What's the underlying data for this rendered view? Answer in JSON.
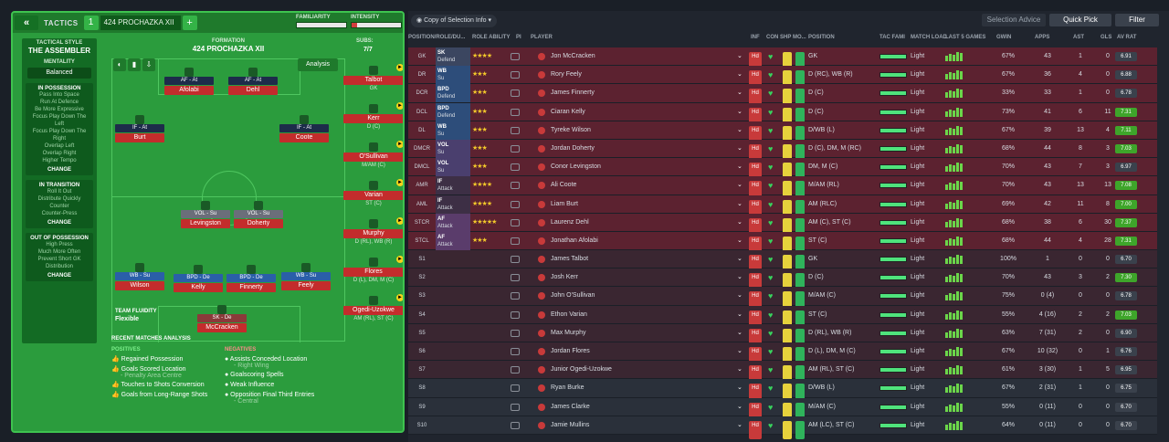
{
  "topbar": {
    "collapse": "«",
    "tactics_label": "TACTICS",
    "tactic_num": "1",
    "tactic_name": "424 PROCHAZKA XII",
    "add": "+",
    "familiarity": "FAMILIARITY",
    "intensity": "INTENSITY",
    "intensity_level": 0.12
  },
  "side": {
    "style_label": "TACTICAL STYLE",
    "style": "THE ASSEMBLER",
    "mentality_label": "MENTALITY",
    "mentality": "Balanced",
    "in_possession": {
      "title": "IN POSSESSION",
      "items": [
        "Pass Into Space",
        "Run At Defence",
        "Be More Expressive",
        "Focus Play Down The Left",
        "Focus Play Down The Right",
        "Overlap Left",
        "Overlap Right",
        "Higher Tempo"
      ],
      "change": "CHANGE"
    },
    "in_transition": {
      "title": "IN TRANSITION",
      "items": [
        "Roll It Out",
        "Distribute Quickly",
        "Counter",
        "Counter-Press"
      ],
      "change": "CHANGE"
    },
    "out_of_possession": {
      "title": "OUT OF POSSESSION",
      "items": [
        "High Press",
        "Much More Often",
        "Prevent Short GK",
        "Distribution"
      ],
      "change": "CHANGE"
    }
  },
  "pitch": {
    "formation_label": "FORMATION",
    "formation": "424 PROCHAZKA XII",
    "subs_label": "SUBS:",
    "subs": "7/7",
    "analysis": "Analysis",
    "fluidity_label": "TEAM FLUIDITY",
    "fluidity": "Flexible",
    "players": [
      {
        "role": "AF - At",
        "name": "Afolabi"
      },
      {
        "role": "AF - At",
        "name": "Dehl"
      },
      {
        "role": "IF - At",
        "name": "Burt"
      },
      {
        "role": "IF - At",
        "name": "Coote"
      },
      {
        "role": "VOL - Su",
        "name": "Levingston"
      },
      {
        "role": "VOL - Su",
        "name": "Doherty"
      },
      {
        "role": "WB - Su",
        "name": "Wilson"
      },
      {
        "role": "BPD - De",
        "name": "Kelly"
      },
      {
        "role": "BPD - De",
        "name": "Finnerty"
      },
      {
        "role": "WB - Su",
        "name": "Feely"
      },
      {
        "role": "SK - De",
        "name": "McCracken"
      }
    ],
    "subs_list": [
      {
        "name": "Talbot",
        "pos": "GK"
      },
      {
        "name": "Kerr",
        "pos": "D (C)"
      },
      {
        "name": "O'Sullivan",
        "pos": "M/AM (C)"
      },
      {
        "name": "Varian",
        "pos": "ST (C)"
      },
      {
        "name": "Murphy",
        "pos": "D (RL), WB (R)"
      },
      {
        "name": "Flores",
        "pos": "D (L), DM, M (C)"
      },
      {
        "name": "Ogedi-Uzokwe",
        "pos": "AM (RL), ST (C)"
      }
    ]
  },
  "analysis": {
    "title": "RECENT MATCHES ANALYSIS",
    "positives_label": "POSITIVES",
    "negatives_label": "NEGATIVES",
    "positives": [
      {
        "t": "Regained Possession"
      },
      {
        "t": "Goals Scored Location",
        "s": "- Penalty Area Centre"
      },
      {
        "t": "Touches to Shots Conversion"
      },
      {
        "t": "Goals from Long-Range Shots"
      }
    ],
    "negatives": [
      {
        "t": "Assists Conceded Location",
        "s": "- Right Wing"
      },
      {
        "t": "Goalscoring Spells"
      },
      {
        "t": "Weak Influence"
      },
      {
        "t": "Opposition Final Third Entries",
        "s": "- Central"
      }
    ]
  },
  "right": {
    "copy": "Copy of Selection Info",
    "selection_advice": "Selection Advice",
    "quick_pick": "Quick Pick",
    "filter": "Filter",
    "headers": {
      "pos": "POSITION/ROLE/DU...",
      "role_ability": "ROLE ABILITY",
      "pi": "PI",
      "player": "PLAYER",
      "inf": "INF",
      "con": "CON",
      "shp": "SHP",
      "mo": "MO...",
      "position": "POSITION",
      "tac": "TAC FAMI",
      "load": "MATCH LOAD",
      "last5": "LAST 5 GAMES",
      "gwin": "GWIN",
      "apps": "APPS",
      "ast": "AST",
      "gls": "GLS",
      "av": "AV RAT"
    },
    "rows": [
      {
        "p": "GK",
        "r": "SK",
        "d": "Defend",
        "st": "★★★★",
        "n": "Jon McCracken",
        "ps": "GK",
        "l": "Light",
        "g": "67%",
        "a": "43",
        "as": "1",
        "gl": "0",
        "av": "6.91"
      },
      {
        "p": "DR",
        "r": "WB",
        "d": "Su",
        "st": "★★★",
        "n": "Rory Feely",
        "ps": "D (RC), WB (R)",
        "l": "Light",
        "g": "67%",
        "a": "36",
        "as": "4",
        "gl": "0",
        "av": "6.88"
      },
      {
        "p": "DCR",
        "r": "BPD",
        "d": "Defend",
        "st": "★★★",
        "n": "James Finnerty",
        "ps": "D (C)",
        "l": "Light",
        "g": "33%",
        "a": "33",
        "as": "1",
        "gl": "0",
        "av": "6.78"
      },
      {
        "p": "DCL",
        "r": "BPD",
        "d": "Defend",
        "st": "★★★",
        "n": "Ciaran Kelly",
        "ps": "D (C)",
        "l": "Light",
        "g": "73%",
        "a": "41",
        "as": "6",
        "gl": "11",
        "av": "7.31"
      },
      {
        "p": "DL",
        "r": "WB",
        "d": "Su",
        "st": "★★★",
        "n": "Tyreke Wilson",
        "ps": "D/WB (L)",
        "l": "Light",
        "g": "67%",
        "a": "39",
        "as": "13",
        "gl": "4",
        "av": "7.11"
      },
      {
        "p": "DMCR",
        "r": "VOL",
        "d": "Su",
        "st": "★★★",
        "n": "Jordan Doherty",
        "ps": "D (C), DM, M (RC)",
        "l": "Light",
        "g": "68%",
        "a": "44",
        "as": "8",
        "gl": "3",
        "av": "7.03"
      },
      {
        "p": "DMCL",
        "r": "VOL",
        "d": "Su",
        "st": "★★★",
        "n": "Conor Levingston",
        "ps": "DM, M (C)",
        "l": "Light",
        "g": "70%",
        "a": "43",
        "as": "7",
        "gl": "3",
        "av": "6.97"
      },
      {
        "p": "AMR",
        "r": "IF",
        "d": "Attack",
        "st": "★★★★",
        "n": "Ali Coote",
        "ps": "M/AM (RL)",
        "l": "Light",
        "g": "70%",
        "a": "43",
        "as": "13",
        "gl": "13",
        "av": "7.08"
      },
      {
        "p": "AML",
        "r": "IF",
        "d": "Attack",
        "st": "★★★★",
        "n": "Liam Burt",
        "ps": "AM (RLC)",
        "l": "Light",
        "g": "69%",
        "a": "42",
        "as": "11",
        "gl": "8",
        "av": "7.00"
      },
      {
        "p": "STCR",
        "r": "AF",
        "d": "Attack",
        "st": "★★★★★",
        "n": "Laurenz Dehl",
        "ps": "AM (C), ST (C)",
        "l": "Light",
        "g": "68%",
        "a": "38",
        "as": "6",
        "gl": "30",
        "av": "7.37"
      },
      {
        "p": "STCL",
        "r": "AF",
        "d": "Attack",
        "st": "★★★",
        "n": "Jonathan Afolabi",
        "ps": "ST (C)",
        "l": "Light",
        "g": "68%",
        "a": "44",
        "as": "4",
        "gl": "28",
        "av": "7.31"
      },
      {
        "p": "S1",
        "r": "",
        "d": "",
        "st": "",
        "n": "James Talbot",
        "ps": "GK",
        "l": "Light",
        "g": "100%",
        "a": "1",
        "as": "0",
        "gl": "0",
        "av": "6.70"
      },
      {
        "p": "S2",
        "r": "",
        "d": "",
        "st": "",
        "n": "Josh Kerr",
        "ps": "D (C)",
        "l": "Light",
        "g": "70%",
        "a": "43",
        "as": "3",
        "gl": "2",
        "av": "7.30"
      },
      {
        "p": "S3",
        "r": "",
        "d": "",
        "st": "",
        "n": "John O'Sullivan",
        "ps": "M/AM (C)",
        "l": "Light",
        "g": "75%",
        "a": "0 (4)",
        "as": "0",
        "gl": "0",
        "av": "6.78"
      },
      {
        "p": "S4",
        "r": "",
        "d": "",
        "st": "",
        "n": "Ethon Varian",
        "ps": "ST (C)",
        "l": "Light",
        "g": "55%",
        "a": "4 (16)",
        "as": "2",
        "gl": "2",
        "av": "7.03"
      },
      {
        "p": "S5",
        "r": "",
        "d": "",
        "st": "",
        "n": "Max Murphy",
        "ps": "D (RL), WB (R)",
        "l": "Light",
        "g": "63%",
        "a": "7 (31)",
        "as": "2",
        "gl": "0",
        "av": "6.90"
      },
      {
        "p": "S6",
        "r": "",
        "d": "",
        "st": "",
        "n": "Jordan Flores",
        "ps": "D (L), DM, M (C)",
        "l": "Light",
        "g": "67%",
        "a": "10 (32)",
        "as": "0",
        "gl": "1",
        "av": "6.76"
      },
      {
        "p": "S7",
        "r": "",
        "d": "",
        "st": "",
        "n": "Junior Ogedi-Uzokwe",
        "ps": "AM (RL), ST (C)",
        "l": "Light",
        "g": "61%",
        "a": "3 (30)",
        "as": "1",
        "gl": "5",
        "av": "6.95"
      },
      {
        "p": "S8",
        "r": "",
        "d": "",
        "st": "",
        "n": "Ryan Burke",
        "ps": "D/WB (L)",
        "l": "Light",
        "g": "67%",
        "a": "2 (31)",
        "as": "1",
        "gl": "0",
        "av": "6.75"
      },
      {
        "p": "S9",
        "r": "",
        "d": "",
        "st": "",
        "n": "James Clarke",
        "ps": "M/AM (C)",
        "l": "Light",
        "g": "55%",
        "a": "0 (11)",
        "as": "0",
        "gl": "0",
        "av": "6.70"
      },
      {
        "p": "S10",
        "r": "",
        "d": "",
        "st": "",
        "n": "Jamie Mullins",
        "ps": "AM (LC), ST (C)",
        "l": "Light",
        "g": "64%",
        "a": "0 (11)",
        "as": "0",
        "gl": "0",
        "av": "6.70"
      }
    ]
  }
}
